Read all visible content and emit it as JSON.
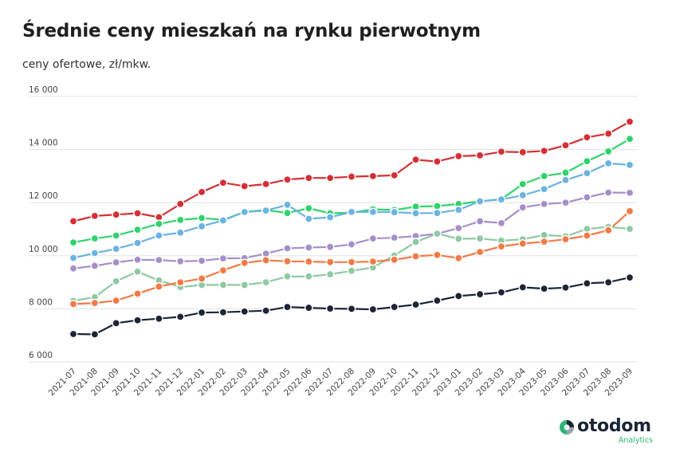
{
  "header": {
    "title": "Średnie ceny mieszkań na rynku pierwotnym",
    "subtitle": "ceny ofertowe, zł/mkw."
  },
  "logo": {
    "wordmark": "otodom",
    "sub": "Analytics"
  },
  "chart_data": {
    "type": "line",
    "categories": [
      "2021-07",
      "2021-08",
      "2021-09",
      "2021-10",
      "2021-11",
      "2021-12",
      "2022-01",
      "2022-02",
      "2022-03",
      "2022-04",
      "2022-05",
      "2022-06",
      "2022-07",
      "2022-08",
      "2022-09",
      "2022-10",
      "2022-11",
      "2022-12",
      "2023-01",
      "2023-02",
      "2023-03",
      "2023-04",
      "2023-05",
      "2023-06",
      "2023-07",
      "2023-08",
      "2023-09"
    ],
    "y_ticks": [
      6000,
      8000,
      10000,
      12000,
      14000,
      16000
    ],
    "y_tick_labels": [
      "6 000",
      "8 000",
      "10 000",
      "12 000",
      "14 000",
      "16 000"
    ],
    "ylim": [
      6000,
      16000
    ],
    "grid": true,
    "series": [
      {
        "color": "#d42f35",
        "values": [
          11300,
          11500,
          11550,
          11600,
          11450,
          11950,
          12400,
          12750,
          12620,
          12700,
          12870,
          12930,
          12930,
          12980,
          13000,
          13030,
          13620,
          13550,
          13750,
          13780,
          13920,
          13900,
          13950,
          14160,
          14460,
          14600,
          15050
        ]
      },
      {
        "color": "#2fd36b",
        "values": [
          10500,
          10650,
          10760,
          10980,
          11200,
          11350,
          11420,
          11350,
          11650,
          11720,
          11610,
          11790,
          11600,
          11620,
          11750,
          11720,
          11850,
          11870,
          11950,
          12050,
          12130,
          12700,
          13000,
          13130,
          13560,
          13930,
          14400
        ]
      },
      {
        "color": "#6bb3e0",
        "values": [
          9920,
          10100,
          10260,
          10480,
          10760,
          10870,
          11110,
          11330,
          11650,
          11700,
          11920,
          11390,
          11450,
          11650,
          11650,
          11640,
          11600,
          11610,
          11730,
          12050,
          12120,
          12280,
          12510,
          12850,
          13110,
          13480,
          13420
        ]
      },
      {
        "color": "#a68fc9",
        "values": [
          9520,
          9620,
          9750,
          9850,
          9840,
          9790,
          9810,
          9900,
          9910,
          10080,
          10280,
          10310,
          10330,
          10430,
          10650,
          10680,
          10740,
          10830,
          11040,
          11300,
          11230,
          11820,
          11950,
          12000,
          12200,
          12380,
          12370
        ]
      },
      {
        "color": "#8fc9a3",
        "values": [
          8300,
          8440,
          9040,
          9400,
          9070,
          8820,
          8900,
          8900,
          8900,
          9000,
          9220,
          9220,
          9300,
          9430,
          9560,
          10010,
          10520,
          10830,
          10640,
          10650,
          10570,
          10620,
          10780,
          10730,
          11010,
          11090,
          11010
        ]
      },
      {
        "color": "#f27a45",
        "values": [
          8180,
          8220,
          8310,
          8570,
          8840,
          9000,
          9140,
          9450,
          9730,
          9830,
          9790,
          9780,
          9760,
          9760,
          9780,
          9850,
          9980,
          10030,
          9910,
          10140,
          10350,
          10460,
          10530,
          10620,
          10760,
          10960,
          11680
        ]
      },
      {
        "color": "#1b2536",
        "values": [
          7050,
          7040,
          7460,
          7570,
          7630,
          7700,
          7860,
          7870,
          7900,
          7930,
          8070,
          8040,
          8010,
          8000,
          7980,
          8070,
          8160,
          8310,
          8480,
          8550,
          8620,
          8810,
          8760,
          8800,
          8960,
          9000,
          9180
        ]
      }
    ]
  }
}
